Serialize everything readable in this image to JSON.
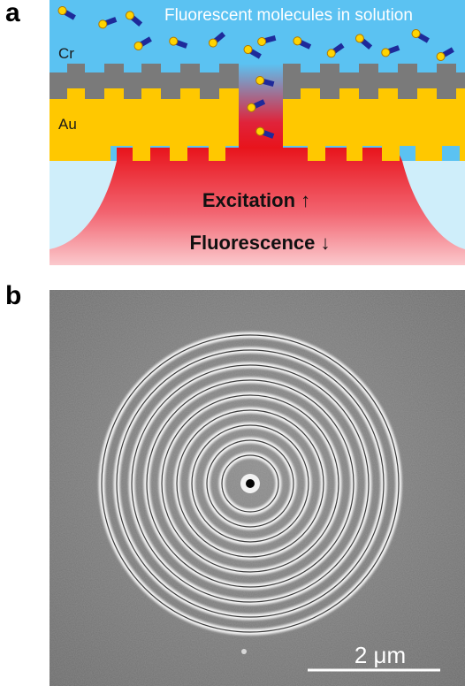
{
  "panel_a": {
    "letter": "a",
    "title": "Fluorescent molecules in solution",
    "layer_cr": "Cr",
    "layer_au": "Au",
    "excitation": "Excitation ↑",
    "fluorescence": "Fluorescence ↓",
    "colors": {
      "solution": "#5bc2f2",
      "chromium": "#7a7a7a",
      "gold": "#ffc800",
      "light": "#e8232c",
      "glass": "#cfeefa"
    }
  },
  "panel_b": {
    "letter": "b",
    "scale_bar": "2 μm",
    "ring_count": 9
  }
}
